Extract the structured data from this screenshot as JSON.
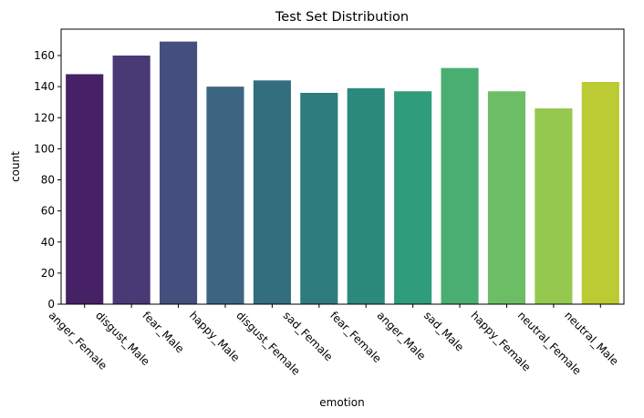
{
  "chart_data": {
    "type": "bar",
    "title": "Test Set Distribution",
    "xlabel": "emotion",
    "ylabel": "count",
    "categories": [
      "anger_Female",
      "disgust_Male",
      "fear_Male",
      "happy_Male",
      "disgust_Female",
      "sad_Female",
      "fear_Female",
      "anger_Male",
      "sad_Male",
      "happy_Female",
      "neutral_Female",
      "neutral_Male"
    ],
    "values": [
      148,
      160,
      169,
      140,
      144,
      136,
      139,
      137,
      152,
      137,
      126,
      143
    ],
    "colors": [
      "#462166",
      "#493a75",
      "#444f7d",
      "#3c6582",
      "#326e7d",
      "#2e7b7c",
      "#2c8a7c",
      "#2f9c7c",
      "#4aae72",
      "#6dbd66",
      "#94c84f",
      "#bcca33"
    ],
    "ylim": [
      0,
      177
    ],
    "yticks": [
      0,
      20,
      40,
      60,
      80,
      100,
      120,
      140,
      160
    ],
    "grid": false
  }
}
